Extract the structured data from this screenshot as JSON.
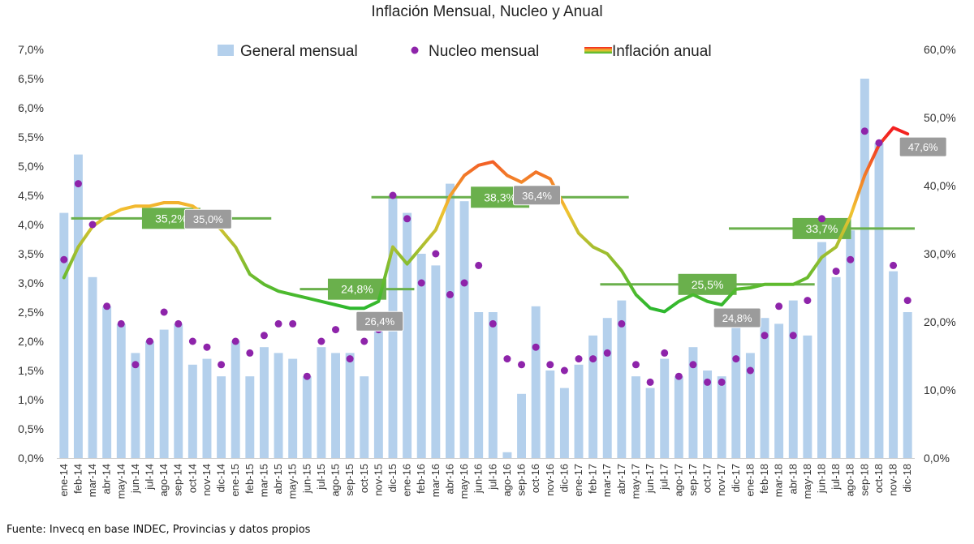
{
  "chart_data": {
    "type": "bar",
    "title": "Inflación Mensual, Nucleo y Anual",
    "source": "Fuente: Invecq en base INDEC, Provincias y datos propios",
    "categories": [
      "ene-14",
      "feb-14",
      "mar-14",
      "abr-14",
      "may-14",
      "jun-14",
      "jul-14",
      "ago-14",
      "sep-14",
      "oct-14",
      "nov-14",
      "dic-14",
      "ene-15",
      "feb-15",
      "mar-15",
      "abr-15",
      "may-15",
      "jun-15",
      "jul-15",
      "ago-15",
      "sep-15",
      "oct-15",
      "nov-15",
      "dic-15",
      "ene-16",
      "feb-16",
      "mar-16",
      "abr-16",
      "may-16",
      "jun-16",
      "jul-16",
      "ago-16",
      "sep-16",
      "oct-16",
      "nov-16",
      "dic-16",
      "ene-17",
      "feb-17",
      "mar-17",
      "abr-17",
      "may-17",
      "jun-17",
      "jul-17",
      "ago-17",
      "sep-17",
      "oct-17",
      "nov-17",
      "dic-17",
      "ene-18",
      "feb-18",
      "mar-18",
      "abr-18",
      "may-18",
      "jun-18",
      "jul-18",
      "ago-18",
      "sep-18",
      "oct-18",
      "nov-18",
      "dic-18"
    ],
    "y_left": {
      "min": 0,
      "max": 7,
      "step": 0.5,
      "tick_labels": [
        "0,0%",
        "0,5%",
        "1,0%",
        "1,5%",
        "2,0%",
        "2,5%",
        "3,0%",
        "3,5%",
        "4,0%",
        "4,5%",
        "5,0%",
        "5,5%",
        "6,0%",
        "6,5%",
        "7,0%"
      ]
    },
    "y_right": {
      "min": 0,
      "max": 60,
      "step": 10,
      "tick_labels": [
        "0,0%",
        "10,0%",
        "20,0%",
        "30,0%",
        "40,0%",
        "50,0%",
        "60,0%"
      ]
    },
    "legend": {
      "placement": "top-center",
      "entries": [
        "General mensual",
        "Nucleo mensual",
        "Inflación anual"
      ]
    },
    "series": [
      {
        "name": "General mensual",
        "kind": "bar",
        "axis": "left",
        "color": "#b4d0ec",
        "values": [
          4.2,
          5.2,
          3.1,
          2.6,
          2.3,
          1.8,
          2.0,
          2.2,
          2.3,
          1.6,
          1.7,
          1.4,
          2.0,
          1.4,
          1.9,
          1.8,
          1.7,
          1.4,
          1.9,
          1.8,
          1.8,
          1.4,
          2.2,
          4.5,
          4.2,
          3.5,
          3.3,
          4.7,
          4.4,
          2.5,
          2.5,
          0.1,
          1.1,
          2.6,
          1.5,
          1.2,
          1.6,
          2.1,
          2.4,
          2.7,
          1.4,
          1.2,
          1.7,
          1.4,
          1.9,
          1.5,
          1.4,
          2.5,
          1.8,
          2.4,
          2.3,
          2.7,
          2.1,
          3.7,
          3.1,
          3.9,
          6.5,
          5.4,
          3.2,
          2.5
        ]
      },
      {
        "name": "Nucleo mensual",
        "kind": "dot",
        "axis": "left",
        "color": "#8e24aa",
        "values": [
          3.4,
          4.7,
          4.0,
          2.6,
          2.3,
          1.6,
          2.0,
          2.5,
          2.3,
          2.0,
          1.9,
          1.6,
          2.0,
          1.8,
          2.1,
          2.3,
          2.3,
          1.4,
          2.0,
          2.2,
          1.7,
          2.0,
          2.2,
          4.5,
          4.1,
          3.0,
          3.5,
          2.8,
          3.0,
          3.3,
          2.3,
          1.7,
          1.6,
          1.9,
          1.6,
          1.5,
          1.7,
          1.7,
          1.8,
          2.3,
          1.6,
          1.3,
          1.8,
          1.4,
          1.6,
          1.3,
          1.3,
          1.7,
          1.5,
          2.1,
          2.6,
          2.1,
          2.7,
          4.1,
          3.2,
          3.4,
          5.6,
          5.4,
          3.3,
          2.7
        ]
      },
      {
        "name": "Inflación anual",
        "kind": "line",
        "axis": "right",
        "color_low": "#2eb82e",
        "color_mid": "#f2c230",
        "color_high": "#f32020",
        "values": [
          26.5,
          31.0,
          34.0,
          35.5,
          36.5,
          37.0,
          37.0,
          37.5,
          37.5,
          37.0,
          35.5,
          33.5,
          31.0,
          27.0,
          25.5,
          24.5,
          24.0,
          23.5,
          23.0,
          22.5,
          22.0,
          22.0,
          23.0,
          31.0,
          28.5,
          31.0,
          33.5,
          38.5,
          41.5,
          43.0,
          43.5,
          41.5,
          40.5,
          42.0,
          41.0,
          37.0,
          33.0,
          31.0,
          30.0,
          27.5,
          24.0,
          22.0,
          21.5,
          23.0,
          24.0,
          23.0,
          22.5,
          24.8,
          25.0,
          25.5,
          25.5,
          25.5,
          26.5,
          29.5,
          31.0,
          35.5,
          41.5,
          46.0,
          48.5,
          47.6
        ]
      }
    ],
    "reference_lines": [
      {
        "label": "35,2%",
        "value": 35.2,
        "from": "feb-14",
        "to": "mar-15"
      },
      {
        "label": "24,8%",
        "value": 24.8,
        "from": "jun-15",
        "to": "ene-16"
      },
      {
        "label": "38,3%",
        "value": 38.3,
        "from": "nov-15",
        "to": "abr-17"
      },
      {
        "label": "25,5%",
        "value": 25.5,
        "from": "mar-17",
        "to": "may-18"
      },
      {
        "label": "33,7%",
        "value": 33.7,
        "from": "dic-17",
        "to": "dic-18"
      }
    ],
    "callouts": [
      {
        "label": "35,0%",
        "at": "oct-14"
      },
      {
        "label": "26,4%",
        "at": "oct-15"
      },
      {
        "label": "36,4%",
        "at": "sep-16"
      },
      {
        "label": "24,8%",
        "at": "nov-17"
      },
      {
        "label": "47,6%",
        "at": "dic-18"
      }
    ]
  }
}
